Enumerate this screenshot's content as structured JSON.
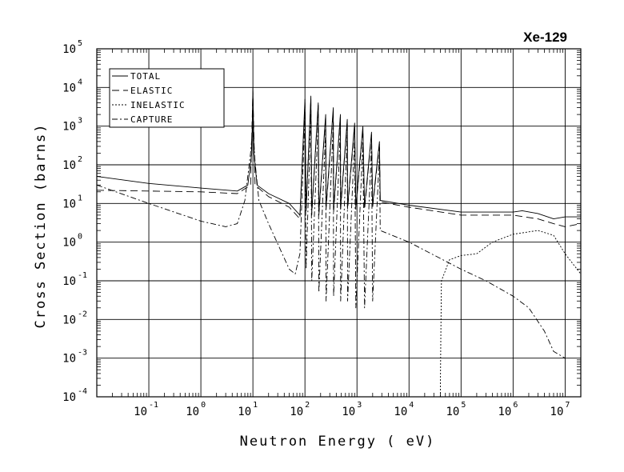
{
  "chart_data": {
    "type": "line",
    "title": "Xe-129",
    "xlabel": "Neutron Energy ( eV)",
    "ylabel": "Cross Section (barns)",
    "x_scale": "log",
    "y_scale": "log",
    "xlim": [
      0.01,
      20000000
    ],
    "ylim": [
      0.0001,
      100000
    ],
    "grid": true,
    "legend_position": "top-left",
    "x_ticks": [
      {
        "base": "10",
        "exp": "-1",
        "value": 0.1
      },
      {
        "base": "10",
        "exp": "0",
        "value": 1
      },
      {
        "base": "10",
        "exp": "1",
        "value": 10
      },
      {
        "base": "10",
        "exp": "2",
        "value": 100
      },
      {
        "base": "10",
        "exp": "3",
        "value": 1000
      },
      {
        "base": "10",
        "exp": "4",
        "value": 10000
      },
      {
        "base": "10",
        "exp": "5",
        "value": 100000
      },
      {
        "base": "10",
        "exp": "6",
        "value": 1000000
      },
      {
        "base": "10",
        "exp": "7",
        "value": 10000000
      }
    ],
    "y_ticks": [
      {
        "base": "10",
        "exp": "-4",
        "value": 0.0001
      },
      {
        "base": "10",
        "exp": "-3",
        "value": 0.001
      },
      {
        "base": "10",
        "exp": "-2",
        "value": 0.01
      },
      {
        "base": "10",
        "exp": "-1",
        "value": 0.1
      },
      {
        "base": "10",
        "exp": "0",
        "value": 1
      },
      {
        "base": "10",
        "exp": "1",
        "value": 10
      },
      {
        "base": "10",
        "exp": "2",
        "value": 100
      },
      {
        "base": "10",
        "exp": "3",
        "value": 1000
      },
      {
        "base": "10",
        "exp": "4",
        "value": 10000
      },
      {
        "base": "10",
        "exp": "5",
        "value": 100000
      }
    ],
    "series": [
      {
        "name": "TOTAL",
        "dash": "solid",
        "points": [
          [
            0.01,
            50
          ],
          [
            0.1,
            33
          ],
          [
            1,
            25
          ],
          [
            5,
            21
          ],
          [
            8,
            30
          ],
          [
            9.5,
            200
          ],
          [
            10,
            10000
          ],
          [
            10.5,
            200
          ],
          [
            12,
            30
          ],
          [
            20,
            18
          ],
          [
            50,
            10
          ],
          [
            80,
            5
          ],
          [
            100,
            5000
          ],
          [
            105,
            7
          ],
          [
            130,
            6000
          ],
          [
            135,
            6
          ],
          [
            180,
            4000
          ],
          [
            185,
            6
          ],
          [
            250,
            2000
          ],
          [
            255,
            8
          ],
          [
            350,
            3000
          ],
          [
            355,
            7
          ],
          [
            480,
            2000
          ],
          [
            485,
            8
          ],
          [
            650,
            1500
          ],
          [
            660,
            8
          ],
          [
            900,
            1200
          ],
          [
            950,
            8
          ],
          [
            1300,
            1000
          ],
          [
            1400,
            8
          ],
          [
            1900,
            700
          ],
          [
            2000,
            9
          ],
          [
            2700,
            400
          ],
          [
            2800,
            12
          ],
          [
            10000,
            9
          ],
          [
            100000,
            6
          ],
          [
            1000000,
            6
          ],
          [
            1500000,
            6.5
          ],
          [
            3000000,
            5.5
          ],
          [
            6000000,
            4
          ],
          [
            10000000,
            4.5
          ],
          [
            20000000,
            4.5
          ]
        ]
      },
      {
        "name": "ELASTIC",
        "dash": "long-dash",
        "points": [
          [
            0.01,
            22
          ],
          [
            0.1,
            21
          ],
          [
            1,
            20
          ],
          [
            5,
            18
          ],
          [
            9,
            30
          ],
          [
            10,
            8000
          ],
          [
            11,
            30
          ],
          [
            20,
            15
          ],
          [
            50,
            8
          ],
          [
            80,
            4
          ],
          [
            100,
            4000
          ],
          [
            105,
            6
          ],
          [
            130,
            5000
          ],
          [
            135,
            5
          ],
          [
            180,
            3500
          ],
          [
            185,
            5
          ],
          [
            250,
            1800
          ],
          [
            255,
            7
          ],
          [
            350,
            2500
          ],
          [
            355,
            6
          ],
          [
            480,
            1800
          ],
          [
            485,
            7
          ],
          [
            650,
            1300
          ],
          [
            660,
            7
          ],
          [
            900,
            1000
          ],
          [
            950,
            7
          ],
          [
            1300,
            800
          ],
          [
            1400,
            7
          ],
          [
            1900,
            600
          ],
          [
            2000,
            8
          ],
          [
            2700,
            350
          ],
          [
            2800,
            11
          ],
          [
            10000,
            8
          ],
          [
            100000,
            5
          ],
          [
            1000000,
            5
          ],
          [
            3000000,
            4
          ],
          [
            6000000,
            3
          ],
          [
            10000000,
            2.5
          ],
          [
            20000000,
            3
          ]
        ]
      },
      {
        "name": "INELASTIC",
        "dash": "dotted",
        "points": [
          [
            40000,
            0.0001
          ],
          [
            41000,
            0.005
          ],
          [
            42000,
            0.1
          ],
          [
            60000,
            0.35
          ],
          [
            100000,
            0.45
          ],
          [
            200000,
            0.5
          ],
          [
            400000,
            1
          ],
          [
            1000000,
            1.6
          ],
          [
            3000000,
            2
          ],
          [
            6000000,
            1.5
          ],
          [
            10000000,
            0.5
          ],
          [
            20000000,
            0.15
          ]
        ]
      },
      {
        "name": "CAPTURE",
        "dash": "dash-dot",
        "points": [
          [
            0.01,
            30
          ],
          [
            0.1,
            10
          ],
          [
            1,
            3.5
          ],
          [
            3,
            2.5
          ],
          [
            5,
            3
          ],
          [
            7,
            12
          ],
          [
            9,
            200
          ],
          [
            10,
            1000
          ],
          [
            11,
            120
          ],
          [
            13,
            12
          ],
          [
            20,
            3
          ],
          [
            50,
            0.2
          ],
          [
            65,
            0.15
          ],
          [
            80,
            0.5
          ],
          [
            100,
            2000
          ],
          [
            105,
            0.2
          ],
          [
            130,
            2000
          ],
          [
            135,
            0.1
          ],
          [
            180,
            1500
          ],
          [
            185,
            0.05
          ],
          [
            250,
            800
          ],
          [
            255,
            0.03
          ],
          [
            350,
            1200
          ],
          [
            355,
            0.04
          ],
          [
            480,
            900
          ],
          [
            485,
            0.03
          ],
          [
            650,
            700
          ],
          [
            660,
            0.03
          ],
          [
            900,
            500
          ],
          [
            950,
            0.02
          ],
          [
            1300,
            400
          ],
          [
            1400,
            0.02
          ],
          [
            1900,
            300
          ],
          [
            2000,
            0.03
          ],
          [
            2700,
            200
          ],
          [
            2800,
            2
          ],
          [
            10000,
            1
          ],
          [
            100000,
            0.2
          ],
          [
            300000,
            0.1
          ],
          [
            1000000,
            0.04
          ],
          [
            2000000,
            0.02
          ],
          [
            4000000,
            0.005
          ],
          [
            6000000,
            0.0015
          ],
          [
            10000000,
            0.001
          ]
        ]
      }
    ]
  }
}
